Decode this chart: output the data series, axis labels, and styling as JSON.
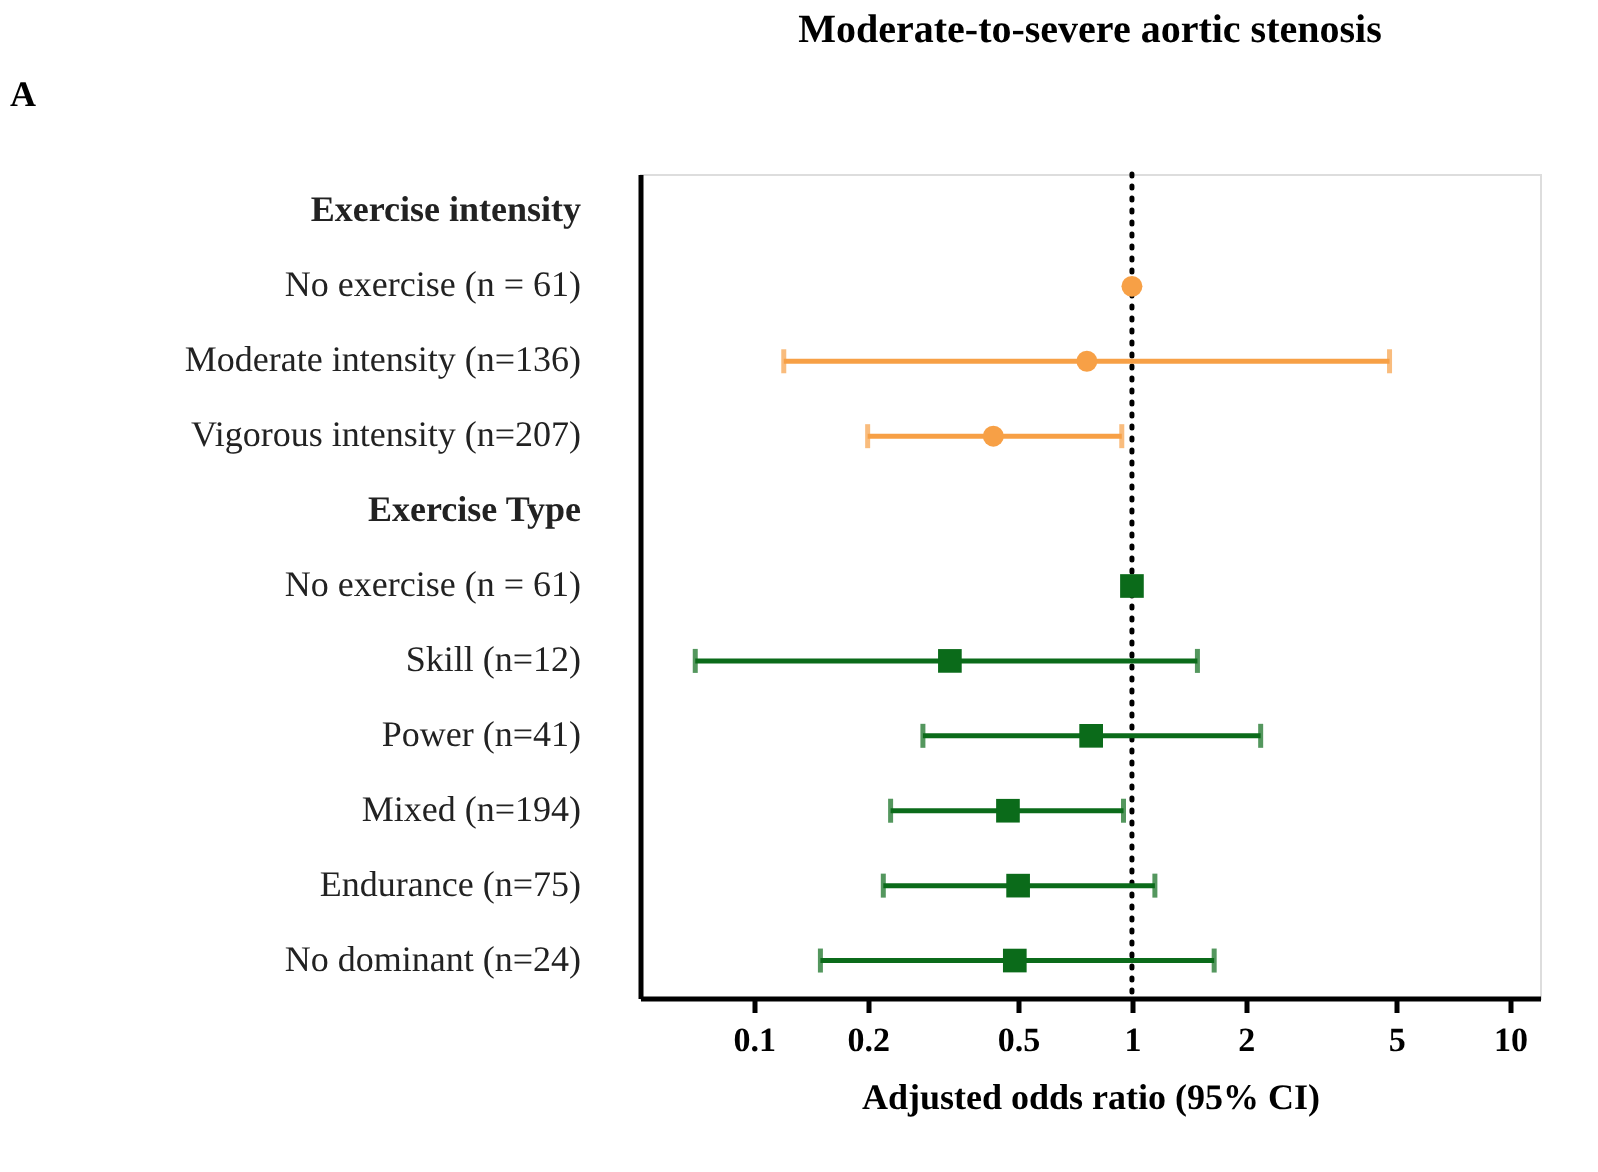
{
  "chart_data": {
    "type": "scatter",
    "title": "Moderate-to-severe aortic stenosis",
    "xlabel": "Adjusted odds ratio (95% CI)",
    "annotations": [
      "A"
    ],
    "orientation": "horizontal",
    "categories": [
      "Exercise intensity",
      "No exercise (n = 61)",
      "Moderate intensity (n=136)",
      "Vigorous intensity (n=207)",
      "Exercise Type",
      "No exercise (n = 61)",
      "Skill (n=12)",
      "Power (n=41)",
      "Mixed (n=194)",
      "Endurance (n=75)",
      "No dominant (n=24)"
    ],
    "series": [
      {
        "color": "#f7a046",
        "marker": "circle",
        "values": [
          null,
          1,
          0.76,
          0.43,
          null,
          null,
          null,
          null,
          null,
          null,
          null
        ],
        "errors": [
          null,
          null,
          [
            0.12,
            4.8
          ],
          [
            0.2,
            0.94
          ],
          null,
          null,
          null,
          null,
          null,
          null,
          null
        ]
      },
      {
        "color": "#0b6b1a",
        "marker": "square",
        "values": [
          null,
          null,
          null,
          null,
          null,
          1,
          0.33,
          0.78,
          0.47,
          0.5,
          0.49
        ],
        "errors": [
          null,
          null,
          null,
          null,
          null,
          null,
          [
            0.07,
            1.49
          ],
          [
            0.28,
            2.19
          ],
          [
            0.23,
            0.95
          ],
          [
            0.22,
            1.15
          ],
          [
            0.15,
            1.65
          ]
        ]
      }
    ],
    "log": "x",
    "xlim": [
      0.05,
      12
    ],
    "xticks": [
      0.1,
      0.2,
      0.5,
      1,
      2,
      5,
      10
    ],
    "grid": false,
    "ref_lines": [
      {
        "axis": "x",
        "value": 1,
        "line_style": "dotted",
        "color": "#000000"
      }
    ]
  }
}
